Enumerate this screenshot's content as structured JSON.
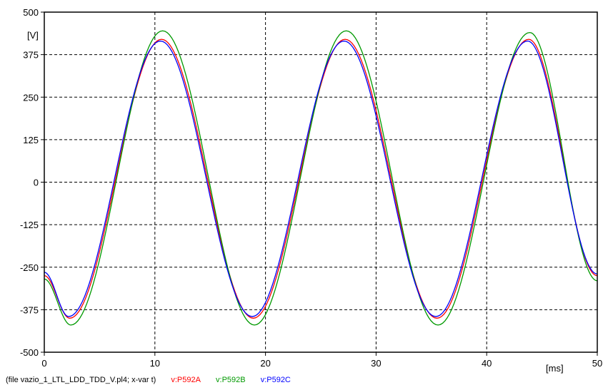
{
  "chart_data": {
    "type": "line",
    "title": "",
    "xlabel": "",
    "x_unit": "[ms]",
    "y_unit": "[V]",
    "xlim": [
      0,
      50
    ],
    "ylim": [
      -500,
      500
    ],
    "x_ticks": [
      0,
      10,
      20,
      30,
      40,
      50
    ],
    "x_tick_labels": [
      "0",
      "10",
      "20",
      "30",
      "40",
      "50"
    ],
    "y_ticks": [
      500,
      375,
      250,
      125,
      0,
      -125,
      -250,
      -375,
      -500
    ],
    "y_tick_labels": [
      "500",
      "375",
      "250",
      "125",
      "0",
      "-125",
      "-250",
      "-375",
      "-500"
    ],
    "grid": true,
    "legend_placement": "bottom",
    "series": [
      {
        "name": "v:P592A",
        "color": "#ff0000",
        "x": [
          0,
          2.3,
          10.6,
          18.9,
          27.2,
          35.5,
          43.8,
          50
        ],
        "y": [
          -275,
          -400,
          420,
          -400,
          420,
          -400,
          420,
          -275
        ]
      },
      {
        "name": "v:P592B",
        "color": "#009900",
        "x": [
          0,
          2.4,
          10.7,
          19.0,
          27.3,
          35.6,
          43.9,
          50
        ],
        "y": [
          -285,
          -420,
          445,
          -420,
          445,
          -420,
          440,
          -290
        ]
      },
      {
        "name": "v:P592C",
        "color": "#0000ff",
        "x": [
          0,
          2.2,
          10.5,
          18.8,
          27.1,
          35.4,
          43.7,
          50
        ],
        "y": [
          -265,
          -395,
          415,
          -395,
          415,
          -395,
          415,
          -270
        ]
      }
    ]
  },
  "footer": {
    "file_label": "(file vazio_1_LTL_LDD_TDD_V.pl4; x-var t)"
  }
}
